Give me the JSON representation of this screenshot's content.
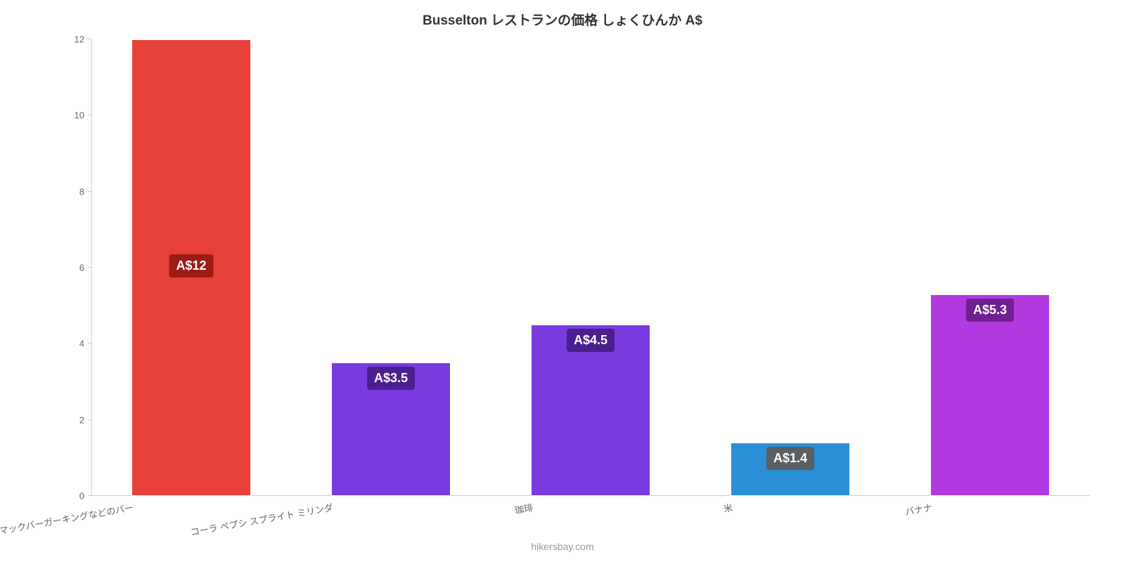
{
  "chart": {
    "type": "bar",
    "title": "Busselton レストランの価格 しょくひんか A$",
    "title_fontsize": 19,
    "title_color": "#333333",
    "source": "hikersbay.com",
    "source_fontsize": 14,
    "source_color": "#999999",
    "background_color": "#ffffff",
    "axis_color": "#cccccc",
    "tick_label_color": "#666666",
    "tick_fontsize": 13,
    "ylim": [
      0,
      12
    ],
    "ytick_step": 2,
    "yticks": [
      0,
      2,
      4,
      6,
      8,
      10,
      12
    ],
    "bar_width_ratio": 0.6,
    "bar_label_fontsize": 18,
    "bar_label_text_color": "#ffffff",
    "categories": [
      "マックバーガーキングなどのバー",
      "コーラ ペプシ スプライト ミリンダ",
      "珈琲",
      "米",
      "バナナ"
    ],
    "values": [
      12,
      3.5,
      4.5,
      1.4,
      5.3
    ],
    "value_labels": [
      "A$12",
      "A$3.5",
      "A$4.5",
      "A$1.4",
      "A$5.3"
    ],
    "bar_colors": [
      "#e8403a",
      "#7b3ae0",
      "#7b3ae0",
      "#2a8fd6",
      "#b23ae0"
    ],
    "bar_stroke_colors": [
      "#ffffff",
      "#ffffff",
      "#ffffff",
      "#ffffff",
      "#ffffff"
    ],
    "label_box_colors": [
      "#9a1b17",
      "#4a1f8f",
      "#4a1f8f",
      "#5a5f64",
      "#6f1f8f"
    ],
    "label_positions": [
      "middle",
      "top-in",
      "top-in",
      "top-in",
      "top-in"
    ]
  }
}
